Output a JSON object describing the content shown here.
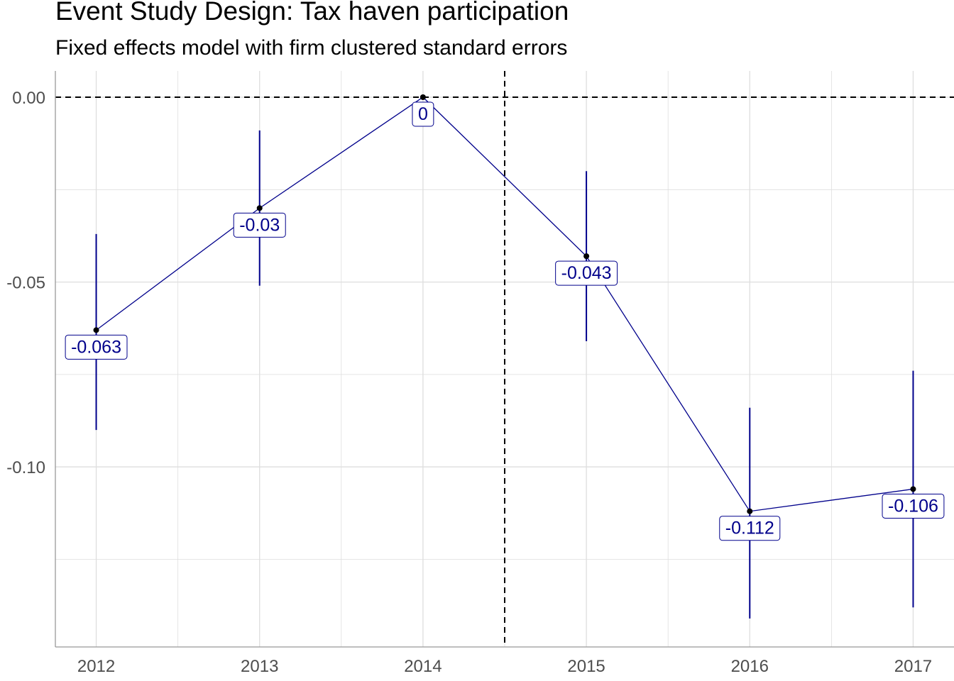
{
  "chart_data": {
    "type": "line",
    "title": "Event Study Design: Tax haven participation",
    "subtitle": "Fixed effects model with firm clustered standard errors",
    "xlabel": "",
    "ylabel": "",
    "x": [
      2012,
      2013,
      2014,
      2015,
      2016,
      2017
    ],
    "x_tick_labels": [
      "2012",
      "2013",
      "2014",
      "2015",
      "2016",
      "2017"
    ],
    "y_ticks": [
      0.0,
      -0.05,
      -0.1
    ],
    "y_tick_labels": [
      "0.00",
      "-0.05",
      "-0.10"
    ],
    "xlim": [
      2011.75,
      2017.25
    ],
    "ylim": [
      -0.1487,
      0.0071
    ],
    "series": [
      {
        "values": [
          -0.063,
          -0.03,
          0,
          -0.043,
          -0.112,
          -0.106
        ],
        "ci_low": [
          -0.09,
          -0.051,
          0,
          -0.066,
          -0.141,
          -0.138
        ],
        "ci_high": [
          -0.037,
          -0.009,
          0,
          -0.02,
          -0.084,
          -0.074
        ],
        "labels": [
          "-0.063",
          "-0.03",
          "0",
          "-0.043",
          "-0.112",
          "-0.106"
        ]
      }
    ],
    "reference_lines": {
      "horizontal_y": 0,
      "vertical_x": 2014.5
    },
    "colors": {
      "series": "#00008b",
      "grid": "#dedede",
      "axis": "#4d4d4d",
      "reference": "#000000"
    },
    "grid": true,
    "legend": "none"
  }
}
